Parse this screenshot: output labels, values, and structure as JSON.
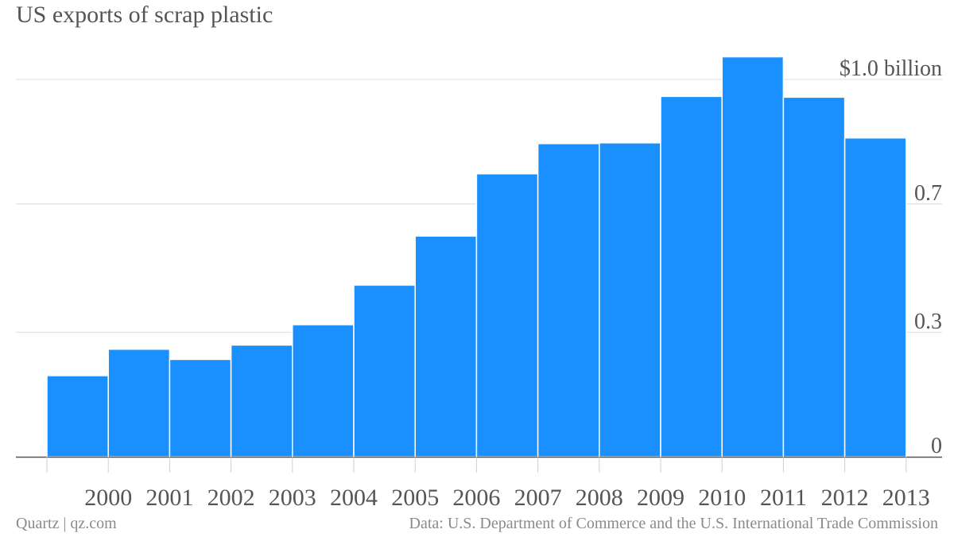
{
  "chart_data": {
    "type": "bar",
    "title": "US exports of scrap plastic",
    "xlabel": "",
    "ylabel": "",
    "categories": [
      "2000",
      "2001",
      "2002",
      "2003",
      "2004",
      "2005",
      "2006",
      "2007",
      "2008",
      "2009",
      "2010",
      "2011",
      "2012",
      "2013"
    ],
    "values": [
      0.215,
      0.285,
      0.258,
      0.296,
      0.35,
      0.455,
      0.585,
      0.75,
      0.83,
      0.832,
      0.955,
      1.06,
      0.953,
      0.845
    ],
    "y_ticks": [
      0,
      0.33,
      0.67,
      1.0
    ],
    "y_tick_labels": [
      "0",
      "0.3",
      "0.7",
      "$1.0 billion"
    ],
    "ylim": [
      0,
      1.0
    ],
    "grid": true,
    "legend": "none",
    "bar_color": "#1a90ff"
  },
  "footer": {
    "credit": "Quartz | qz.com",
    "source": "Data: U.S. Department of Commerce and the U.S. International Trade Commission"
  }
}
